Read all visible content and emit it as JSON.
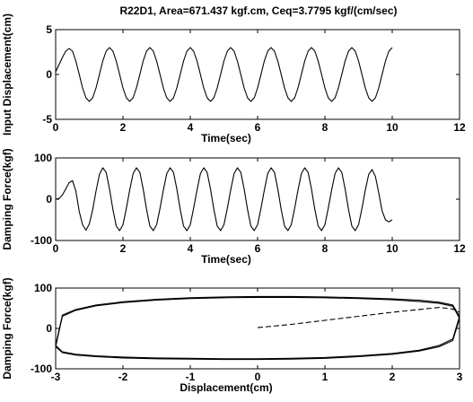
{
  "figure": {
    "title": "R22D1, Area=671.437 kgf.cm, Ceq=3.7795 kgf/(cm/sec)"
  },
  "chart_data": [
    {
      "type": "line",
      "title": "R22D1, Area=671.437 kgf.cm, Ceq=3.7795 kgf/(cm/sec)",
      "xlabel": "Time(sec)",
      "ylabel": "Input Displacement(cm)",
      "xlim": [
        0,
        12
      ],
      "ylim": [
        -5,
        5
      ],
      "xticks": [
        0,
        2,
        4,
        6,
        8,
        10,
        12
      ],
      "yticks": [
        -5,
        0,
        5
      ],
      "grid": false,
      "series": [
        {
          "style": "solid",
          "x": [
            0,
            0.1,
            0.2,
            0.3,
            0.4,
            0.5,
            0.6,
            0.7,
            0.8,
            0.9,
            1.0,
            1.1,
            1.2,
            1.3,
            1.4,
            1.5,
            1.6,
            1.7,
            1.8,
            1.9,
            2.0,
            2.1,
            2.2,
            2.3,
            2.4,
            2.5,
            2.6,
            2.7,
            2.8,
            2.9,
            3.0,
            3.1,
            3.2,
            3.3,
            3.4,
            3.5,
            3.6,
            3.7,
            3.8,
            3.9,
            4.0,
            4.1,
            4.2,
            4.3,
            4.4,
            4.5,
            4.6,
            4.7,
            4.8,
            4.9,
            5.0,
            5.1,
            5.2,
            5.3,
            5.4,
            5.5,
            5.6,
            5.7,
            5.8,
            5.9,
            6.0,
            6.1,
            6.2,
            6.3,
            6.4,
            6.5,
            6.6,
            6.7,
            6.8,
            6.9,
            7.0,
            7.1,
            7.2,
            7.3,
            7.4,
            7.5,
            7.6,
            7.7,
            7.8,
            7.9,
            8.0,
            8.1,
            8.2,
            8.3,
            8.4,
            8.5,
            8.6,
            8.7,
            8.8,
            8.9,
            9.0,
            9.1,
            9.2,
            9.3,
            9.4,
            9.5,
            9.6,
            9.7,
            9.8,
            9.9,
            10.0
          ],
          "y": [
            0.3,
            1.1,
            1.9,
            2.6,
            2.9,
            2.6,
            1.5,
            0.0,
            -1.5,
            -2.6,
            -3.0,
            -2.6,
            -1.5,
            0.0,
            1.5,
            2.6,
            3.0,
            2.6,
            1.5,
            0.0,
            -1.5,
            -2.6,
            -3.0,
            -2.6,
            -1.5,
            0.0,
            1.5,
            2.6,
            3.0,
            2.6,
            1.5,
            0.0,
            -1.5,
            -2.6,
            -3.0,
            -2.6,
            -1.5,
            0.0,
            1.5,
            2.6,
            3.0,
            2.6,
            1.5,
            0.0,
            -1.5,
            -2.6,
            -3.0,
            -2.6,
            -1.5,
            0.0,
            1.5,
            2.6,
            3.0,
            2.6,
            1.5,
            0.0,
            -1.5,
            -2.6,
            -3.0,
            -2.6,
            -1.5,
            0.0,
            1.5,
            2.6,
            3.0,
            2.6,
            1.5,
            0.0,
            -1.5,
            -2.6,
            -3.0,
            -2.6,
            -1.5,
            0.0,
            1.5,
            2.6,
            3.0,
            2.6,
            1.5,
            0.0,
            -1.5,
            -2.6,
            -3.0,
            -2.6,
            -1.5,
            0.0,
            1.5,
            2.6,
            3.0,
            2.6,
            1.5,
            0.0,
            -1.5,
            -2.6,
            -3.0,
            -2.6,
            -1.5,
            0.0,
            1.5,
            2.6,
            3.0
          ]
        }
      ]
    },
    {
      "type": "line",
      "xlabel": "Time(sec)",
      "ylabel": "Damping Force(kgf)",
      "xlim": [
        0,
        12
      ],
      "ylim": [
        -100,
        100
      ],
      "xticks": [
        0,
        2,
        4,
        6,
        8,
        10,
        12
      ],
      "yticks": [
        -100,
        0,
        100
      ],
      "grid": false,
      "series": [
        {
          "style": "solid",
          "x": [
            0,
            0.1,
            0.2,
            0.3,
            0.4,
            0.5,
            0.6,
            0.7,
            0.8,
            0.9,
            1.0,
            1.1,
            1.2,
            1.3,
            1.4,
            1.5,
            1.6,
            1.7,
            1.8,
            1.9,
            2.0,
            2.1,
            2.2,
            2.3,
            2.4,
            2.5,
            2.6,
            2.7,
            2.8,
            2.9,
            3.0,
            3.1,
            3.2,
            3.3,
            3.4,
            3.5,
            3.6,
            3.7,
            3.8,
            3.9,
            4.0,
            4.1,
            4.2,
            4.3,
            4.4,
            4.5,
            4.6,
            4.7,
            4.8,
            4.9,
            5.0,
            5.1,
            5.2,
            5.3,
            5.4,
            5.5,
            5.6,
            5.7,
            5.8,
            5.9,
            6.0,
            6.1,
            6.2,
            6.3,
            6.4,
            6.5,
            6.6,
            6.7,
            6.8,
            6.9,
            7.0,
            7.1,
            7.2,
            7.3,
            7.4,
            7.5,
            7.6,
            7.7,
            7.8,
            7.9,
            8.0,
            8.1,
            8.2,
            8.3,
            8.4,
            8.5,
            8.6,
            8.7,
            8.8,
            8.9,
            9.0,
            9.1,
            9.2,
            9.3,
            9.4,
            9.5,
            9.6,
            9.7,
            9.8,
            9.9,
            10.0
          ],
          "y": [
            0,
            2,
            10,
            25,
            40,
            45,
            20,
            -30,
            -62,
            -75,
            -60,
            -25,
            20,
            60,
            76,
            65,
            25,
            -25,
            -65,
            -76,
            -62,
            -22,
            22,
            62,
            76,
            65,
            25,
            -25,
            -65,
            -76,
            -62,
            -22,
            22,
            62,
            76,
            65,
            25,
            -25,
            -65,
            -76,
            -62,
            -22,
            22,
            62,
            76,
            65,
            25,
            -25,
            -65,
            -76,
            -62,
            -22,
            22,
            62,
            76,
            65,
            25,
            -25,
            -65,
            -76,
            -62,
            -22,
            22,
            62,
            76,
            65,
            25,
            -25,
            -65,
            -76,
            -62,
            -22,
            22,
            62,
            76,
            65,
            25,
            -25,
            -65,
            -76,
            -62,
            -22,
            22,
            62,
            76,
            65,
            25,
            -25,
            -65,
            -76,
            -62,
            -22,
            22,
            60,
            72,
            55,
            15,
            -28,
            -50,
            -55,
            -50
          ]
        }
      ]
    },
    {
      "type": "line",
      "xlabel": "Displacement(cm)",
      "ylabel": "Damping Force(kgf)",
      "xlim": [
        -3,
        3
      ],
      "ylim": [
        -100,
        100
      ],
      "xticks": [
        -3,
        -2,
        -1,
        0,
        1,
        2,
        3
      ],
      "yticks": [
        -100,
        0,
        100
      ],
      "grid": false,
      "series": [
        {
          "style": "dashed",
          "x": [
            0.0,
            0.5,
            1.0,
            1.5,
            2.0,
            2.4,
            2.7,
            2.9,
            3.0
          ],
          "y": [
            2,
            10,
            20,
            30,
            40,
            47,
            52,
            48,
            40
          ]
        },
        {
          "style": "solid",
          "x": [
            3.0,
            2.9,
            2.7,
            2.4,
            2.0,
            1.5,
            1.0,
            0.5,
            0.0,
            -0.5,
            -1.0,
            -1.5,
            -2.0,
            -2.4,
            -2.7,
            -2.9,
            -3.0,
            -2.9,
            -2.7,
            -2.4,
            -2.0,
            -1.5,
            -1.0,
            -0.5,
            0.0,
            0.5,
            1.0,
            1.5,
            2.0,
            2.4,
            2.7,
            2.9,
            3.0
          ],
          "y": [
            25,
            55,
            62,
            67,
            71,
            74,
            76,
            77,
            77,
            76,
            74,
            70,
            64,
            56,
            45,
            30,
            -45,
            -60,
            -66,
            -70,
            -73,
            -75,
            -76,
            -77,
            -77,
            -76,
            -74,
            -70,
            -64,
            -56,
            -45,
            -30,
            25
          ]
        },
        {
          "style": "solid",
          "x": [
            3.0,
            2.9,
            2.7,
            2.4,
            2.0,
            1.5,
            1.0,
            0.5,
            0.0,
            -0.5,
            -1.0,
            -1.5,
            -2.0,
            -2.4,
            -2.7,
            -2.9,
            -3.0,
            -2.9,
            -2.7,
            -2.4,
            -2.0,
            -1.5,
            -1.0,
            -0.5,
            0.0,
            0.5,
            1.0,
            1.5,
            2.0,
            2.4,
            2.7,
            2.9,
            3.0
          ],
          "y": [
            30,
            58,
            65,
            70,
            73,
            76,
            78,
            79,
            79,
            78,
            76,
            72,
            66,
            58,
            47,
            33,
            -42,
            -58,
            -64,
            -68,
            -71,
            -73,
            -74,
            -75,
            -75,
            -74,
            -72,
            -68,
            -62,
            -54,
            -42,
            -26,
            30
          ]
        }
      ]
    }
  ]
}
